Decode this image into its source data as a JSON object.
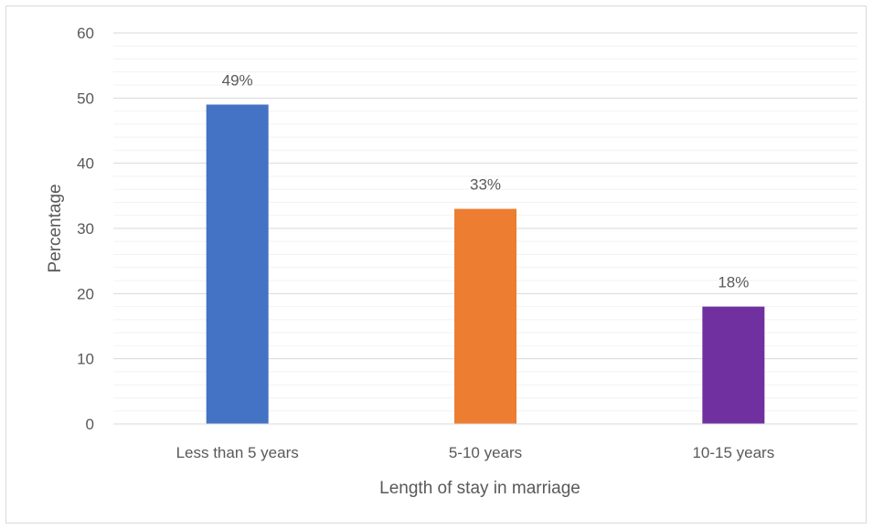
{
  "chart_data": {
    "type": "bar",
    "title": "",
    "xlabel": "Length of stay in marriage",
    "ylabel": "Percentage",
    "ylim": [
      0,
      60
    ],
    "yticks": [
      0,
      10,
      20,
      30,
      40,
      50,
      60
    ],
    "categories": [
      "Less than 5 years",
      "5-10 years",
      "10-15 years"
    ],
    "values": [
      49,
      33,
      18
    ],
    "data_labels": [
      "49%",
      "33%",
      "18%"
    ],
    "colors": [
      "#4472c4",
      "#ed7d31",
      "#7030a0"
    ],
    "grid": true,
    "minor_grid": true,
    "legend": "none"
  }
}
